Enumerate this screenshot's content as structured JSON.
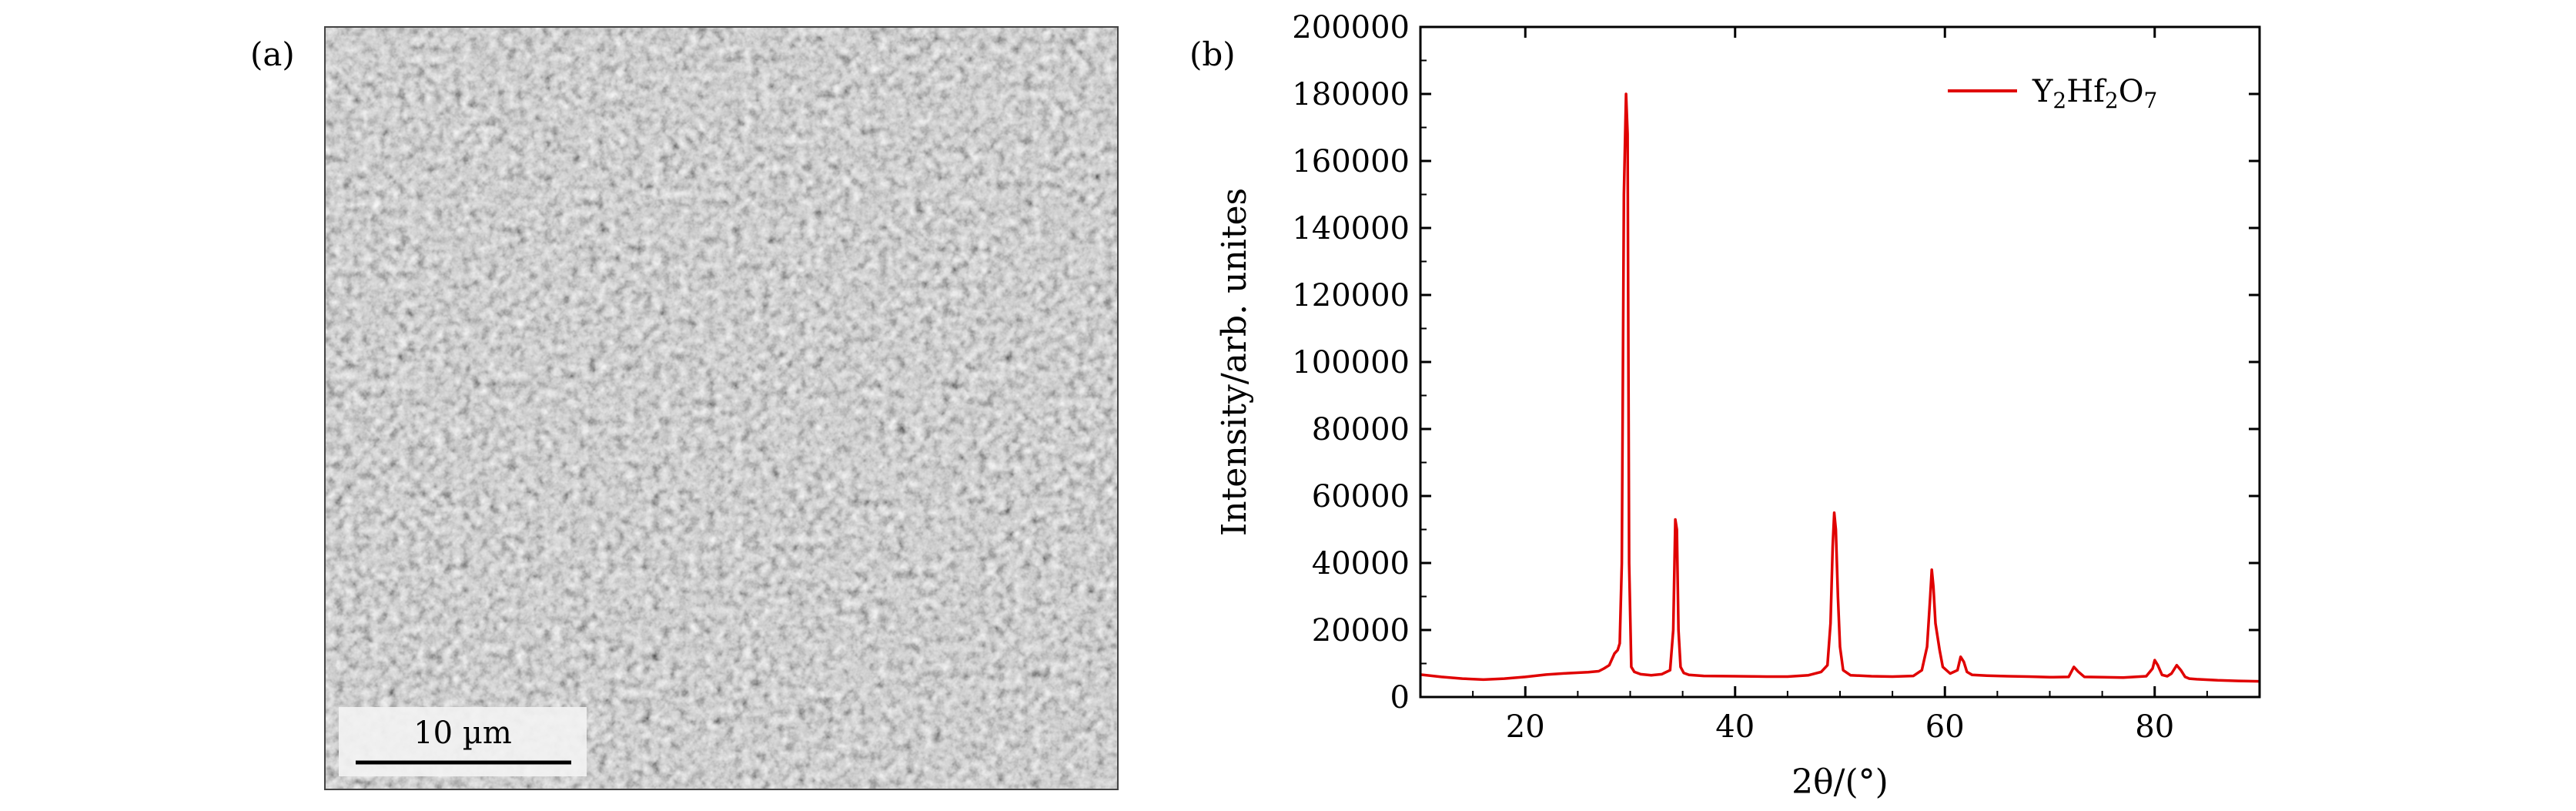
{
  "panel_a": {
    "label": "(a)",
    "scale_bar_text": "10 µm",
    "image_description_colors": {
      "mid": "#9a9a9a",
      "dark": "#101010",
      "light": "#e8e8e8"
    }
  },
  "panel_b": {
    "label": "(b)"
  },
  "chart_data": {
    "type": "line",
    "xlabel": "2θ/(°)",
    "ylabel": "Intensity/arb. unites",
    "xlim": [
      10,
      90
    ],
    "ylim": [
      0,
      200000
    ],
    "x_ticks": [
      20,
      40,
      60,
      80
    ],
    "y_ticks": [
      0,
      20000,
      40000,
      60000,
      80000,
      100000,
      120000,
      140000,
      160000,
      180000,
      200000
    ],
    "grid": false,
    "legend_position": "top-right",
    "series": [
      {
        "name": "Y2Hf2O7",
        "color": "#e00000",
        "x": [
          10,
          12,
          14,
          16,
          18,
          20,
          22,
          24,
          26,
          27,
          27.5,
          28,
          28.5,
          28.8,
          29.0,
          29.2,
          29.4,
          29.6,
          29.75,
          29.9,
          30.1,
          30.4,
          31,
          32,
          33,
          33.8,
          34.1,
          34.3,
          34.45,
          34.6,
          34.8,
          35.1,
          35.6,
          37,
          40,
          43,
          45,
          47,
          48.2,
          48.8,
          49.1,
          49.3,
          49.45,
          49.6,
          49.8,
          50.0,
          50.3,
          51,
          53,
          55,
          57,
          57.8,
          58.3,
          58.6,
          58.75,
          58.9,
          59.1,
          59.3,
          59.5,
          59.8,
          60.5,
          61.2,
          61.5,
          61.8,
          62.1,
          62.6,
          64,
          66,
          68,
          70,
          71.8,
          72.3,
          72.7,
          73.3,
          75,
          77,
          79.2,
          79.8,
          80.0,
          80.3,
          80.7,
          81.2,
          81.6,
          82.1,
          82.5,
          82.9,
          83.3,
          84,
          86,
          88,
          90
        ],
        "y": [
          6700,
          6000,
          5500,
          5200,
          5500,
          6000,
          6700,
          7100,
          7400,
          7700,
          8500,
          9500,
          13000,
          14000,
          16000,
          40000,
          150000,
          180000,
          168000,
          40000,
          9000,
          7500,
          6800,
          6500,
          6800,
          8000,
          20000,
          53000,
          50000,
          20000,
          9000,
          7200,
          6600,
          6300,
          6200,
          6100,
          6100,
          6500,
          7500,
          9500,
          22000,
          45000,
          55000,
          50000,
          30000,
          15000,
          8000,
          6500,
          6200,
          6100,
          6300,
          8000,
          15000,
          30000,
          38000,
          33000,
          22000,
          18000,
          14000,
          9000,
          7000,
          8000,
          12000,
          10500,
          7500,
          6600,
          6400,
          6200,
          6100,
          5900,
          6000,
          9000,
          7600,
          6000,
          5900,
          5800,
          6200,
          8500,
          11000,
          9500,
          6600,
          6200,
          7000,
          9500,
          8000,
          6000,
          5500,
          5300,
          5000,
          4800,
          4700
        ]
      }
    ]
  }
}
